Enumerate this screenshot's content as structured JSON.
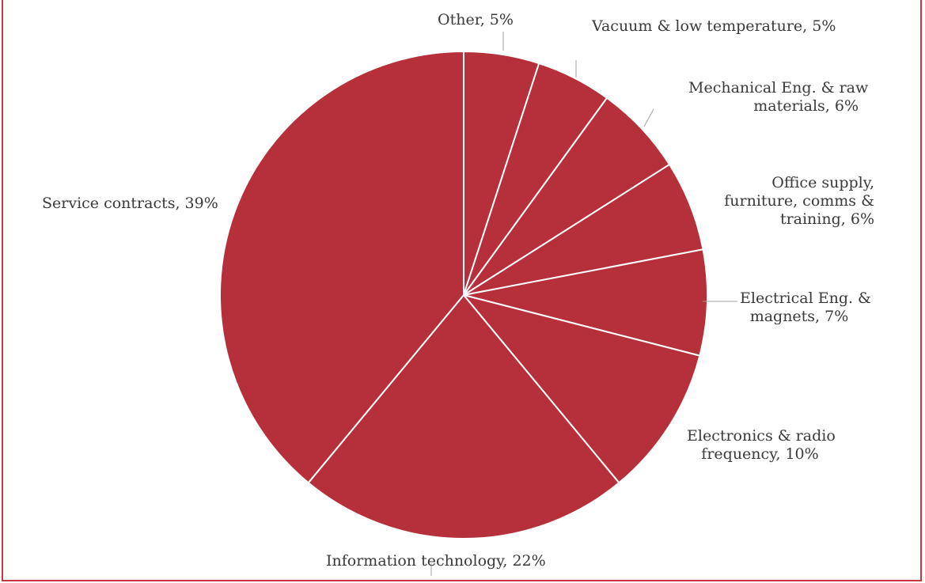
{
  "chart_data": {
    "type": "pie",
    "slices": [
      {
        "label": "Other",
        "value": 5,
        "text": "Other, 5%"
      },
      {
        "label": "Vacuum & low temperature",
        "value": 5,
        "text": "Vacuum & low temperature, 5%"
      },
      {
        "label": "Mechanical Eng. & raw materials",
        "value": 6,
        "text": "Mechanical Eng. & raw materials, 6%"
      },
      {
        "label": "Office supply, furniture, comms & training",
        "value": 6,
        "text": "Office supply, furniture, comms & training, 6%"
      },
      {
        "label": "Electrical Eng. & magnets",
        "value": 7,
        "text": "Electrical Eng. & magnets, 7%"
      },
      {
        "label": "Electronics & radio frequency",
        "value": 10,
        "text": "Electronics & radio frequency, 10%"
      },
      {
        "label": "Information technology",
        "value": 22,
        "text": "Information technology, 22%"
      },
      {
        "label": "Service contracts",
        "value": 39,
        "text": "Service contracts, 39%"
      }
    ],
    "slice_color": "#b5303a",
    "separator_color": "#ffffff",
    "frame_color": "#c8363f",
    "title": "",
    "legend": "none"
  }
}
